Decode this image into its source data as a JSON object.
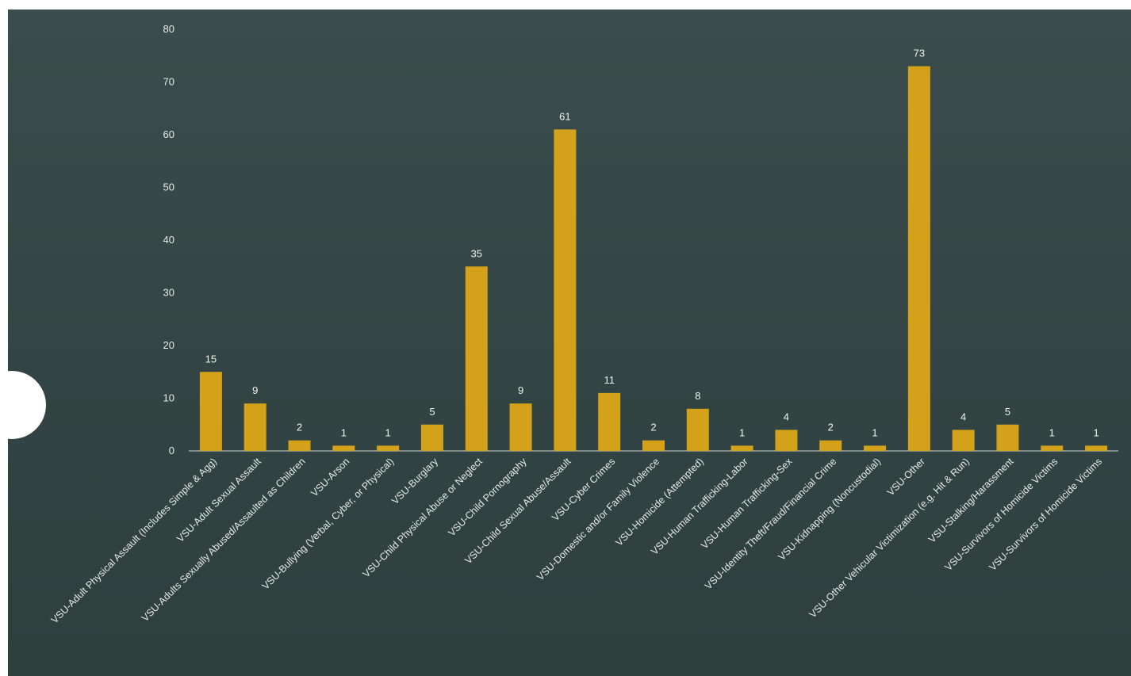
{
  "colors": {
    "panel": "#354847",
    "bar": "#d4a21a",
    "axis": "#cfd6d3",
    "text": "#e8ecea"
  },
  "chart_data": {
    "type": "bar",
    "title": "",
    "xlabel": "",
    "ylabel": "",
    "ylim": [
      0,
      80
    ],
    "yticks": [
      0,
      10,
      20,
      30,
      40,
      50,
      60,
      70,
      80
    ],
    "grid": false,
    "categories": [
      "VSU-Adult Physical Assault (Includes Simple & Agg)",
      "VSU-Adult Sexual Assault",
      "VSU-Adults Sexually Abused/Assaulted as Children",
      "VSU-Arson",
      "VSU-Bullying (Verbal, Cyber, or Physical)",
      "VSU-Burglary",
      "VSU-Child Physical Abuse or Neglect",
      "VSU-Child Pornography",
      "VSU-Child Sexual Abuse/Assault",
      "VSU-Cyber Crimes",
      "VSU-Domestic and/or Family Violence",
      "VSU-Homicide (Attempted)",
      "VSU-Human Trafficking-Labor",
      "VSU-Human Trafficking-Sex",
      "VSU-Identity Theft/Fraud/Financial Crime",
      "VSU-Kidnapping (Noncustodial)",
      "VSU-Other",
      "VSU-Other Vehicular Victimization (e.g. Hit & Run)",
      "VSU-Stalking/Harassment",
      "VSU-Survivors of Homicide Victims",
      "VSU-Survivors of Homicide Victims"
    ],
    "values": [
      15,
      9,
      2,
      1,
      1,
      5,
      35,
      9,
      61,
      11,
      2,
      8,
      1,
      4,
      2,
      1,
      73,
      4,
      5,
      1,
      1
    ]
  }
}
